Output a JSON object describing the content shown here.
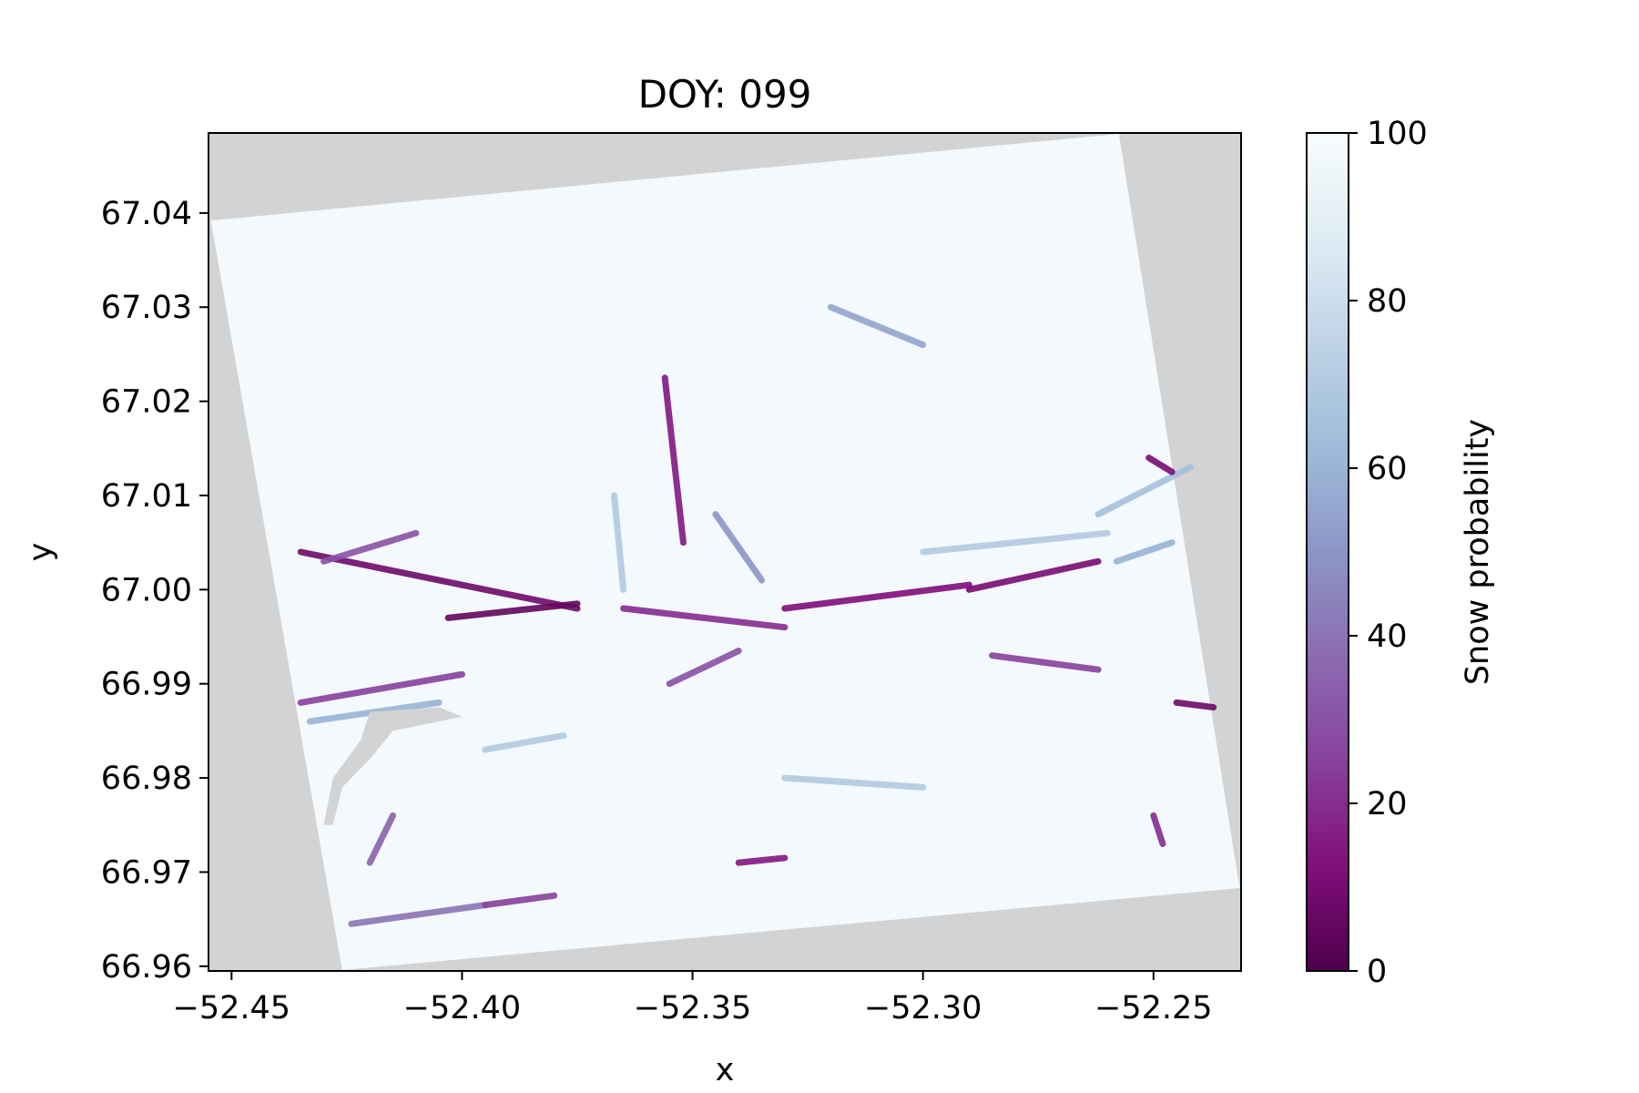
{
  "chart_data": {
    "type": "heatmap",
    "title": "DOY: 099",
    "xlabel": "x",
    "ylabel": "y",
    "xlim": [
      -52.455,
      -52.231
    ],
    "ylim": [
      66.9595,
      67.0485
    ],
    "x_ticks": [
      -52.45,
      -52.4,
      -52.35,
      -52.3,
      -52.25
    ],
    "x_tick_labels": [
      "−52.45",
      "−52.40",
      "−52.35",
      "−52.30",
      "−52.25"
    ],
    "y_ticks": [
      66.96,
      66.97,
      66.98,
      66.99,
      67.0,
      67.01,
      67.02,
      67.03,
      67.04
    ],
    "y_tick_labels": [
      "66.96",
      "66.97",
      "66.98",
      "66.99",
      "67.00",
      "67.01",
      "67.02",
      "67.03",
      "67.04"
    ],
    "colorbar": {
      "label": "Snow probability",
      "range": [
        0,
        100
      ],
      "ticks": [
        0,
        20,
        40,
        60,
        80,
        100
      ],
      "tick_labels": [
        "0",
        "20",
        "40",
        "60",
        "80",
        "100"
      ],
      "colormap": "BuPu_r",
      "stops": [
        "#4d004b",
        "#810f7c",
        "#88419d",
        "#8c6bb1",
        "#8c96c6",
        "#9ebcda",
        "#bfd3e6",
        "#e0ecf4",
        "#f7fcfd"
      ]
    },
    "nodata_color": "#d3d3d3",
    "background_value": 98,
    "footprint_corners": [
      {
        "x": -52.4545,
        "y": 67.0392
      },
      {
        "x": -52.2575,
        "y": 67.0484
      },
      {
        "x": -52.2313,
        "y": 66.9683
      },
      {
        "x": -52.426,
        "y": 66.9596
      }
    ],
    "features": [
      {
        "x0": -52.435,
        "y0": 67.004,
        "x1": -52.375,
        "y1": 66.998,
        "value": 8
      },
      {
        "x0": -52.43,
        "y0": 67.003,
        "x1": -52.41,
        "y1": 67.006,
        "value": 30
      },
      {
        "x0": -52.403,
        "y0": 66.997,
        "x1": -52.375,
        "y1": 66.9985,
        "value": 5
      },
      {
        "x0": -52.435,
        "y0": 66.988,
        "x1": -52.4,
        "y1": 66.991,
        "value": 25
      },
      {
        "x0": -52.433,
        "y0": 66.986,
        "x1": -52.405,
        "y1": 66.988,
        "value": 60
      },
      {
        "x0": -52.365,
        "y0": 66.998,
        "x1": -52.33,
        "y1": 66.996,
        "value": 20
      },
      {
        "x0": -52.33,
        "y0": 66.998,
        "x1": -52.29,
        "y1": 67.0005,
        "value": 12
      },
      {
        "x0": -52.29,
        "y0": 67.0,
        "x1": -52.262,
        "y1": 67.003,
        "value": 10
      },
      {
        "x0": -52.285,
        "y0": 66.993,
        "x1": -52.262,
        "y1": 66.9915,
        "value": 25
      },
      {
        "x0": -52.355,
        "y0": 66.99,
        "x1": -52.34,
        "y1": 66.9935,
        "value": 30
      },
      {
        "x0": -52.356,
        "y0": 67.0225,
        "x1": -52.352,
        "y1": 67.005,
        "value": 15
      },
      {
        "x0": -52.345,
        "y0": 67.008,
        "x1": -52.335,
        "y1": 67.001,
        "value": 50
      },
      {
        "x0": -52.367,
        "y0": 67.01,
        "x1": -52.365,
        "y1": 67.0,
        "value": 70
      },
      {
        "x0": -52.32,
        "y0": 67.03,
        "x1": -52.3,
        "y1": 67.026,
        "value": 55
      },
      {
        "x0": -52.3,
        "y0": 67.004,
        "x1": -52.26,
        "y1": 67.006,
        "value": 70
      },
      {
        "x0": -52.262,
        "y0": 67.008,
        "x1": -52.242,
        "y1": 67.013,
        "value": 65
      },
      {
        "x0": -52.251,
        "y0": 67.014,
        "x1": -52.246,
        "y1": 67.0125,
        "value": 10
      },
      {
        "x0": -52.258,
        "y0": 67.003,
        "x1": -52.246,
        "y1": 67.005,
        "value": 60
      },
      {
        "x0": -52.245,
        "y0": 66.988,
        "x1": -52.237,
        "y1": 66.9875,
        "value": 8
      },
      {
        "x0": -52.424,
        "y0": 66.9645,
        "x1": -52.395,
        "y1": 66.9665,
        "value": 40
      },
      {
        "x0": -52.395,
        "y0": 66.9665,
        "x1": -52.38,
        "y1": 66.9675,
        "value": 25
      },
      {
        "x0": -52.34,
        "y0": 66.971,
        "x1": -52.33,
        "y1": 66.9715,
        "value": 15
      },
      {
        "x0": -52.42,
        "y0": 66.971,
        "x1": -52.415,
        "y1": 66.976,
        "value": 35
      },
      {
        "x0": -52.33,
        "y0": 66.98,
        "x1": -52.3,
        "y1": 66.979,
        "value": 70
      },
      {
        "x0": -52.25,
        "y0": 66.976,
        "x1": -52.248,
        "y1": 66.973,
        "value": 20
      },
      {
        "x0": -52.395,
        "y0": 66.983,
        "x1": -52.378,
        "y1": 66.9845,
        "value": 70
      }
    ],
    "nodata_patch": [
      {
        "x": -52.42,
        "y": 66.987
      },
      {
        "x": -52.405,
        "y": 66.9875
      },
      {
        "x": -52.4,
        "y": 66.9865
      },
      {
        "x": -52.415,
        "y": 66.985
      },
      {
        "x": -52.42,
        "y": 66.982
      },
      {
        "x": -52.426,
        "y": 66.979
      },
      {
        "x": -52.428,
        "y": 66.975
      },
      {
        "x": -52.43,
        "y": 66.975
      },
      {
        "x": -52.428,
        "y": 66.98
      },
      {
        "x": -52.422,
        "y": 66.984
      }
    ]
  }
}
